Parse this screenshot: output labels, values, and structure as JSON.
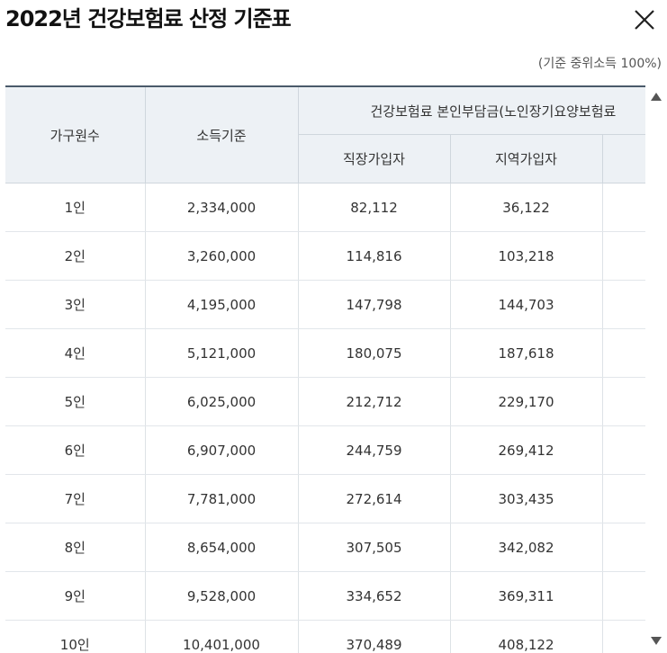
{
  "dialog": {
    "title": "2022년 건강보험료 산정 기준표",
    "note": "(기준 중위소득 100%)"
  },
  "table": {
    "headers": {
      "household": "가구원수",
      "income": "소득기준",
      "premium_group": "건강보험료 본인부담금(노인장기요양보험료",
      "employee": "직장가입자",
      "regional": "지역가입자"
    },
    "rows": [
      {
        "household": "1인",
        "income": "2,334,000",
        "employee": "82,112",
        "regional": "36,122"
      },
      {
        "household": "2인",
        "income": "3,260,000",
        "employee": "114,816",
        "regional": "103,218"
      },
      {
        "household": "3인",
        "income": "4,195,000",
        "employee": "147,798",
        "regional": "144,703"
      },
      {
        "household": "4인",
        "income": "5,121,000",
        "employee": "180,075",
        "regional": "187,618"
      },
      {
        "household": "5인",
        "income": "6,025,000",
        "employee": "212,712",
        "regional": "229,170"
      },
      {
        "household": "6인",
        "income": "6,907,000",
        "employee": "244,759",
        "regional": "269,412"
      },
      {
        "household": "7인",
        "income": "7,781,000",
        "employee": "272,614",
        "regional": "303,435"
      },
      {
        "household": "8인",
        "income": "8,654,000",
        "employee": "307,505",
        "regional": "342,082"
      },
      {
        "household": "9인",
        "income": "9,528,000",
        "employee": "334,652",
        "regional": "369,311"
      },
      {
        "household": "10인",
        "income": "10,401,000",
        "employee": "370,489",
        "regional": "408,122"
      }
    ]
  },
  "icons": {
    "close": "close-icon",
    "scroll_up": "triangle-up-icon",
    "scroll_down": "triangle-down-icon"
  }
}
